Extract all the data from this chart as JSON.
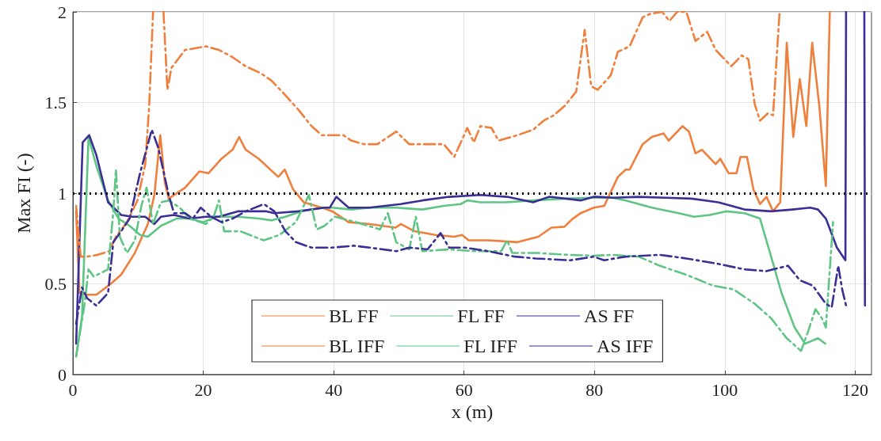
{
  "chart_data": {
    "type": "line",
    "xlabel": "x (m)",
    "ylabel": "Max FI (-)",
    "xlim": [
      0,
      122.5
    ],
    "xticks": [
      0,
      20,
      40,
      60,
      80,
      100,
      120
    ],
    "ylim": [
      0,
      2
    ],
    "yticks": [
      0,
      0.5,
      1,
      1.5,
      2
    ],
    "grid": true,
    "legend": "bottom",
    "marker": "none",
    "ref_lines": [
      {
        "axis": "y",
        "value": 1,
        "color": "#000000",
        "line_style": "dotted"
      }
    ],
    "series": [
      {
        "name": "BL FF",
        "color": "#f07f3c",
        "line_style": "solid",
        "x": [
          0.5,
          1,
          2.2,
          3.6,
          5.8,
          7.4,
          9.5,
          11.5,
          12.5,
          13.4,
          14.1,
          14.7,
          17.2,
          19.4,
          20.8,
          22.8,
          24.5,
          25.5,
          26.5,
          28.5,
          31.5,
          32.5,
          33.8,
          35.4,
          38.2,
          39.8,
          42.3,
          45.5,
          49.5,
          50.3,
          52.4,
          55.6,
          58.5,
          59.7,
          60.7,
          63.7,
          68.2,
          71.4,
          73.4,
          75.4,
          76.7,
          77.9,
          79.9,
          81.5,
          83.6,
          84.8,
          85.4,
          87.4,
          88.8,
          90.6,
          91.4,
          93.5,
          94.5,
          95.5,
          96.5,
          98.6,
          99.3,
          100.6,
          101.8,
          102.4,
          103.4,
          104.4,
          105.4,
          106.4,
          107.4,
          108.5,
          109.5,
          110.5,
          111.5,
          112.5,
          113.4,
          114.5,
          115.5,
          116.1
        ],
        "values": [
          0.9,
          0.45,
          0.44,
          0.44,
          0.5,
          0.55,
          0.67,
          0.83,
          0.99,
          1.32,
          1.06,
          0.97,
          1.03,
          1.12,
          1.11,
          1.19,
          1.24,
          1.31,
          1.24,
          1.19,
          1.09,
          1.13,
          1.02,
          0.95,
          0.92,
          0.9,
          0.84,
          0.83,
          0.81,
          0.83,
          0.79,
          0.77,
          0.76,
          0.77,
          0.74,
          0.74,
          0.73,
          0.76,
          0.81,
          0.815,
          0.86,
          0.89,
          0.92,
          0.93,
          1.09,
          1.13,
          1.13,
          1.27,
          1.31,
          1.33,
          1.29,
          1.37,
          1.34,
          1.22,
          1.24,
          1.16,
          1.19,
          1.11,
          1.11,
          1.2,
          1.2,
          1.02,
          0.94,
          0.98,
          0.9,
          0.95,
          1.83,
          1.31,
          1.63,
          1.37,
          1.83,
          1.48,
          1.04,
          2
        ]
      },
      {
        "name": "FL FF",
        "color": "#5fc585",
        "line_style": "solid",
        "x": [
          0.5,
          1.4,
          2.4,
          3.6,
          5.4,
          7,
          8.7,
          10.3,
          11.5,
          13.5,
          15.9,
          17.9,
          20,
          22,
          25.3,
          28.5,
          30.5,
          32.6,
          35,
          38.2,
          39.8,
          42.7,
          45.5,
          49.6,
          53.6,
          56.9,
          59.5,
          60.5,
          62.5,
          66.5,
          70.6,
          75.4,
          79.9,
          82.8,
          84.8,
          88.8,
          92.9,
          95.3,
          97.7,
          100.2,
          103,
          105.4,
          107.1,
          108.7,
          110.7,
          112.3,
          114.3,
          115.4
        ],
        "values": [
          0.1,
          0.32,
          1.31,
          1.15,
          0.96,
          0.86,
          0.82,
          0.77,
          0.76,
          0.82,
          0.86,
          0.86,
          0.84,
          0.87,
          0.87,
          0.86,
          0.85,
          0.87,
          0.9,
          0.92,
          0.92,
          0.91,
          0.92,
          0.92,
          0.91,
          0.93,
          0.94,
          0.96,
          0.95,
          0.95,
          0.96,
          0.97,
          0.975,
          0.975,
          0.96,
          0.92,
          0.89,
          0.87,
          0.88,
          0.9,
          0.89,
          0.86,
          0.65,
          0.45,
          0.26,
          0.17,
          0.2,
          0.17
        ]
      },
      {
        "name": "AS FF",
        "color": "#3a2f95",
        "line_style": "solid",
        "x": [
          0.5,
          1.5,
          2.5,
          3.6,
          5.4,
          7.4,
          9.1,
          11.1,
          12.5,
          13.5,
          15.5,
          17.9,
          20.4,
          22.4,
          25.3,
          27.7,
          29.7,
          30.9,
          34.6,
          38.6,
          39.4,
          40.4,
          42.3,
          45.5,
          50.3,
          53.6,
          57.7,
          62.5,
          66.6,
          70.6,
          73.1,
          77.9,
          79.9,
          80.5,
          82.8,
          86.8,
          90.9,
          94.9,
          99,
          103,
          107.1,
          110.4,
          113.1,
          114.3,
          115.5,
          117.2,
          118.5,
          118.6,
          120,
          121.4,
          121.5
        ],
        "values": [
          0.17,
          1.28,
          1.32,
          1.21,
          0.95,
          0.88,
          0.87,
          0.87,
          0.83,
          0.87,
          0.88,
          0.86,
          0.87,
          0.87,
          0.9,
          0.9,
          0.9,
          0.89,
          0.9,
          0.92,
          0.92,
          0.98,
          0.92,
          0.92,
          0.94,
          0.96,
          0.98,
          0.99,
          0.98,
          0.95,
          0.98,
          0.96,
          0.98,
          0.98,
          0.975,
          0.98,
          0.975,
          0.97,
          0.95,
          0.91,
          0.9,
          0.91,
          0.92,
          0.91,
          0.86,
          0.7,
          0.63,
          2,
          null,
          2,
          0.38
        ]
      },
      {
        "name": "BL IFF",
        "color": "#f07f3c",
        "line_style": "dashdot",
        "x": [
          0.5,
          1.2,
          2.2,
          3.8,
          5.6,
          6.6,
          8.3,
          9.9,
          11.1,
          11.7,
          12.3,
          13.2,
          13.9,
          14.5,
          15.1,
          17.2,
          20.4,
          22.4,
          24.5,
          26.5,
          28.9,
          30.5,
          32.6,
          34.6,
          36.6,
          38.2,
          39.8,
          41.5,
          42.7,
          44.7,
          46.7,
          49.6,
          51.6,
          54.4,
          56.9,
          58.5,
          60.5,
          61.5,
          62.5,
          64.2,
          65.3,
          68.2,
          70.6,
          72.2,
          73.8,
          75.4,
          77.2,
          78.5,
          79.5,
          80.5,
          82.5,
          83.6,
          85.4,
          87.4,
          88.6,
          90.4,
          91.5,
          92.7,
          94.1,
          95.5,
          97.3,
          98.6,
          101,
          102.6,
          103.6,
          104.6,
          105.4,
          106.6,
          107.4,
          108.4
        ],
        "values": [
          0.93,
          0.65,
          0.65,
          0.66,
          0.68,
          0.76,
          0.84,
          0.96,
          1.16,
          1.48,
          2,
          null,
          2,
          1.57,
          1.69,
          1.79,
          1.81,
          1.79,
          1.75,
          1.7,
          1.66,
          1.62,
          1.54,
          1.46,
          1.37,
          1.32,
          1.32,
          1.32,
          1.29,
          1.27,
          1.27,
          1.34,
          1.27,
          1.27,
          1.27,
          1.2,
          1.36,
          1.28,
          1.37,
          1.36,
          1.29,
          1.32,
          1.35,
          1.4,
          1.43,
          1.48,
          1.56,
          1.9,
          1.59,
          1.57,
          1.65,
          1.78,
          1.81,
          1.97,
          1.99,
          2,
          1.95,
          2,
          2,
          1.84,
          1.89,
          1.79,
          1.7,
          1.76,
          1.74,
          1.49,
          1.4,
          1.44,
          1.43,
          2
        ]
      },
      {
        "name": "FL IFF",
        "color": "#5fc585",
        "line_style": "dashdot",
        "x": [
          0.5,
          1.8,
          2.4,
          3.2,
          5.4,
          6.2,
          6.6,
          7.2,
          8.3,
          9.5,
          10.5,
          11.3,
          12.3,
          13.5,
          14.7,
          16.4,
          17.9,
          20.4,
          21.6,
          22.4,
          23.2,
          25.7,
          28.5,
          29.3,
          31.7,
          34.2,
          36.2,
          37.4,
          38.6,
          40.2,
          43.5,
          47.1,
          48.3,
          49.6,
          51.6,
          52.6,
          53.6,
          57.7,
          61.7,
          65.7,
          66.6,
          67.4,
          71.4,
          75.9,
          79.9,
          82.8,
          86.8,
          90,
          94.1,
          98.2,
          101.3,
          104.6,
          107.1,
          109.5,
          111.7,
          112.7,
          113.9,
          114.9,
          115.5,
          116.6
        ],
        "values": [
          0.1,
          0.39,
          0.58,
          0.54,
          0.58,
          0.9,
          1.13,
          0.76,
          0.67,
          0.74,
          0.93,
          1.03,
          0.83,
          0.95,
          0.96,
          0.92,
          0.86,
          0.83,
          0.87,
          0.96,
          0.79,
          0.79,
          0.75,
          0.74,
          0.77,
          0.84,
          0.99,
          0.8,
          0.82,
          0.87,
          0.84,
          0.8,
          0.89,
          0.73,
          0.69,
          0.87,
          0.68,
          0.69,
          0.68,
          0.68,
          0.74,
          0.67,
          0.67,
          0.66,
          0.655,
          0.66,
          0.65,
          0.6,
          0.55,
          0.49,
          0.47,
          0.39,
          0.31,
          0.2,
          0.13,
          0.23,
          0.36,
          0.31,
          0.26,
          0.84
        ]
      },
      {
        "name": "AS IFF",
        "color": "#3a2f95",
        "line_style": "dashdot",
        "x": [
          0.5,
          1.4,
          2.2,
          3.6,
          5.4,
          6.2,
          7.4,
          8.7,
          10.3,
          12.1,
          13.1,
          14.7,
          15.5,
          17.2,
          18.4,
          19.6,
          21.2,
          22.8,
          24.5,
          26.5,
          29.3,
          30.9,
          32.6,
          34.2,
          36.6,
          38.6,
          39.8,
          43.1,
          45.5,
          49.6,
          51.6,
          54.4,
          56.4,
          57.7,
          60.1,
          63.7,
          67.8,
          71,
          76.3,
          79.9,
          81.5,
          84.8,
          90,
          94.1,
          99,
          103,
          106.3,
          109.7,
          111.5,
          113.5,
          115.5,
          116.4,
          117.4,
          118,
          118.6
        ],
        "values": [
          0.28,
          0.48,
          0.42,
          0.38,
          0.45,
          0.73,
          0.79,
          0.86,
          1.11,
          1.35,
          1.25,
          0.99,
          0.89,
          0.89,
          0.86,
          0.92,
          0.87,
          0.84,
          0.86,
          0.9,
          0.94,
          0.9,
          0.79,
          0.73,
          0.7,
          0.7,
          0.7,
          0.71,
          0.7,
          0.68,
          0.7,
          0.69,
          0.78,
          0.7,
          0.7,
          0.68,
          0.65,
          0.64,
          0.63,
          0.65,
          0.63,
          0.65,
          0.66,
          0.64,
          0.61,
          0.58,
          0.57,
          0.6,
          0.52,
          0.49,
          0.39,
          0.37,
          0.6,
          0.47,
          0.38
        ]
      }
    ]
  }
}
